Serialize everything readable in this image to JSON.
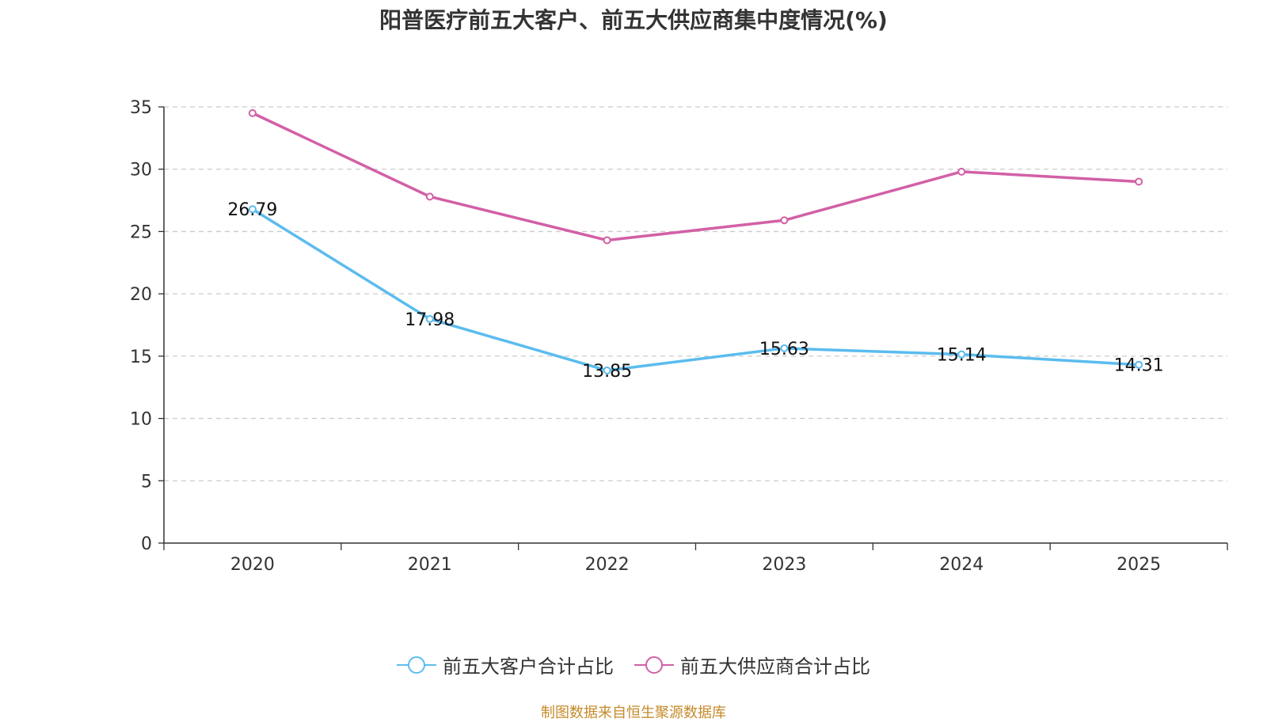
{
  "chart_data": {
    "type": "line",
    "title": "阳普医疗前五大客户、前五大供应商集中度情况(%)",
    "categories": [
      "2020",
      "2021",
      "2022",
      "2023",
      "2024",
      "2025"
    ],
    "ylim": [
      0,
      35
    ],
    "yticks": [
      0,
      5,
      10,
      15,
      20,
      25,
      30,
      35
    ],
    "grid": "horizontal dashed",
    "legend_position": "bottom-center",
    "series": [
      {
        "name": "前五大客户合计占比",
        "color": "#5bbcef",
        "values": [
          26.79,
          17.98,
          13.85,
          15.63,
          15.14,
          14.31
        ],
        "labels": [
          "26.79",
          "17.98",
          "13.85",
          "15.63",
          "15.14",
          "14.31"
        ],
        "show_labels": true
      },
      {
        "name": "前五大供应商合计占比",
        "color": "#d260a6",
        "values": [
          34.5,
          27.8,
          24.3,
          25.9,
          29.8,
          29.0
        ],
        "show_labels": false
      }
    ],
    "source_note": "制图数据来自恒生聚源数据库"
  }
}
